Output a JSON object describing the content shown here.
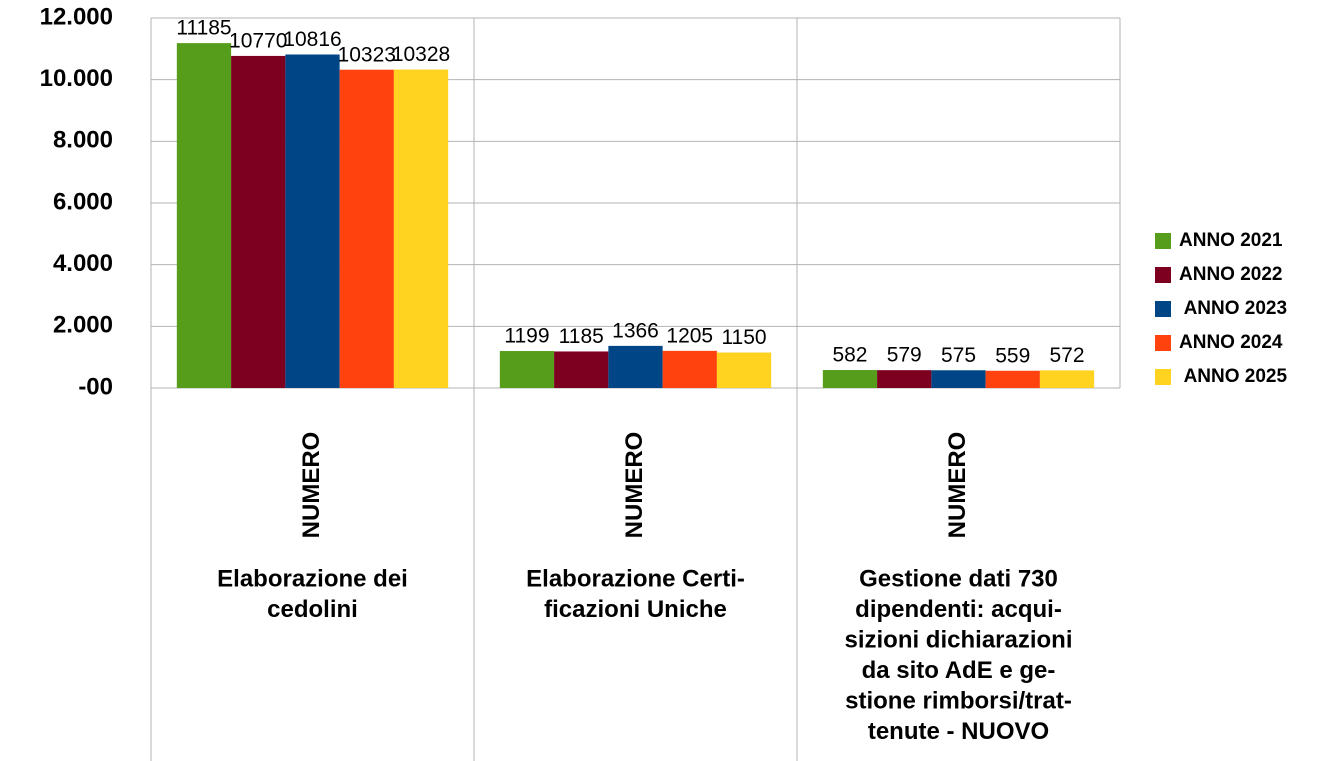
{
  "chart_data": {
    "type": "bar",
    "categories": [
      "NUMERO",
      "NUMERO",
      "NUMERO"
    ],
    "group_labels": [
      [
        "Elaborazione dei",
        "cedolini"
      ],
      [
        "Elaborazione Certi-",
        "ficazioni Uniche"
      ],
      [
        "Gestione dati 730",
        "dipendenti: acqui-",
        "sizioni dichiarazioni",
        "da sito AdE e ge-",
        "stione rimborsi/trat-",
        "tenute - NUOVO"
      ]
    ],
    "series": [
      {
        "name": "ANNO 2021",
        "color": "#579d1c",
        "values": [
          11185,
          1199,
          582
        ]
      },
      {
        "name": "ANNO 2022",
        "color": "#7e0021",
        "values": [
          10770,
          1185,
          579
        ]
      },
      {
        "name": " ANNO 2023",
        "color": "#004586",
        "values": [
          10816,
          1366,
          575
        ]
      },
      {
        "name": "ANNO 2024",
        "color": "#ff420e",
        "values": [
          10323,
          1205,
          559
        ]
      },
      {
        "name": " ANNO 2025",
        "color": "#ffd320",
        "values": [
          10328,
          1150,
          572
        ]
      }
    ],
    "ylim": [
      0,
      12000
    ],
    "yticks": [
      {
        "value": 0,
        "label": "-00"
      },
      {
        "value": 2000,
        "label": "2.000"
      },
      {
        "value": 4000,
        "label": "4.000"
      },
      {
        "value": 6000,
        "label": "6.000"
      },
      {
        "value": 8000,
        "label": "8.000"
      },
      {
        "value": 10000,
        "label": "10.000"
      },
      {
        "value": 12000,
        "label": "12.000"
      }
    ],
    "grid": true,
    "legend": "right"
  }
}
